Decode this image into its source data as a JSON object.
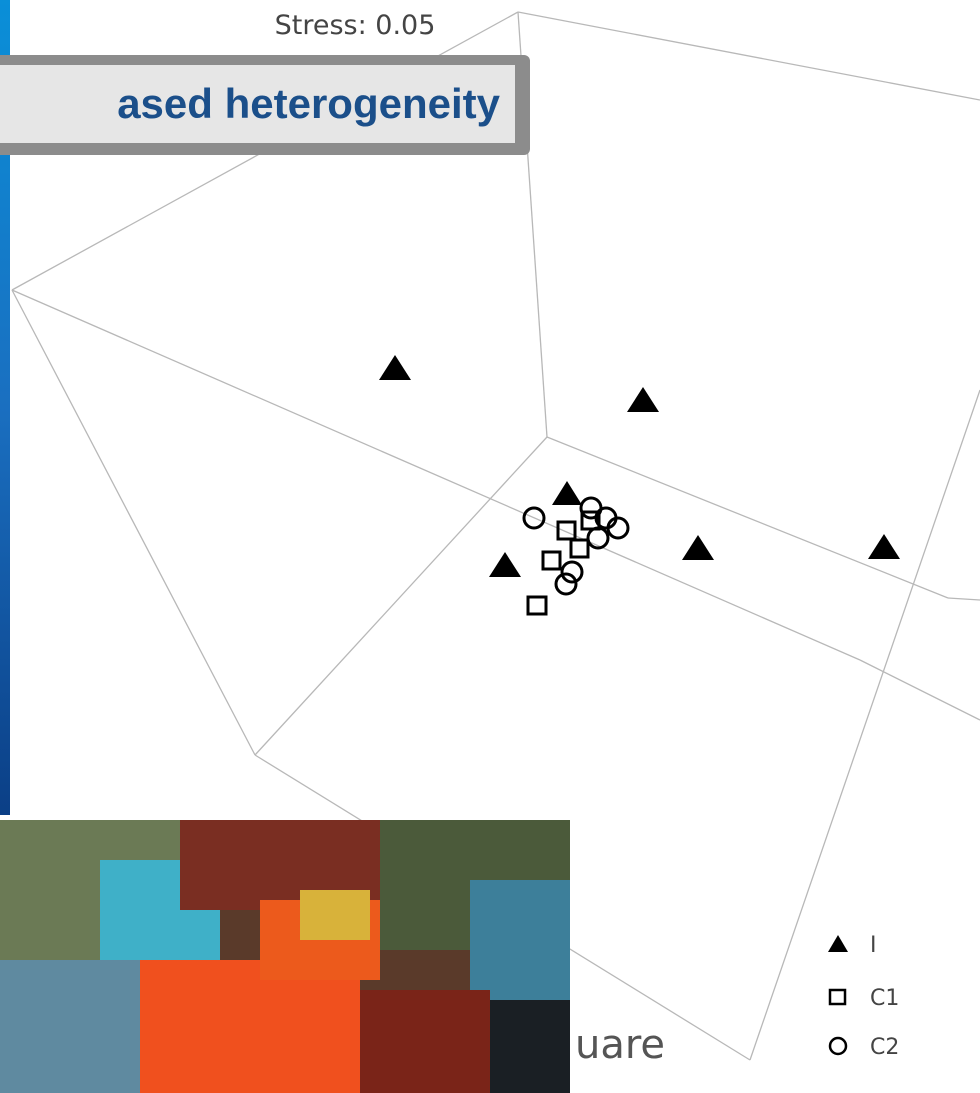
{
  "stress": "Stress: 0.05",
  "banner": "ased heterogeneity",
  "caption": "uare",
  "legend": [
    "I",
    "C1",
    "C2"
  ]
}
